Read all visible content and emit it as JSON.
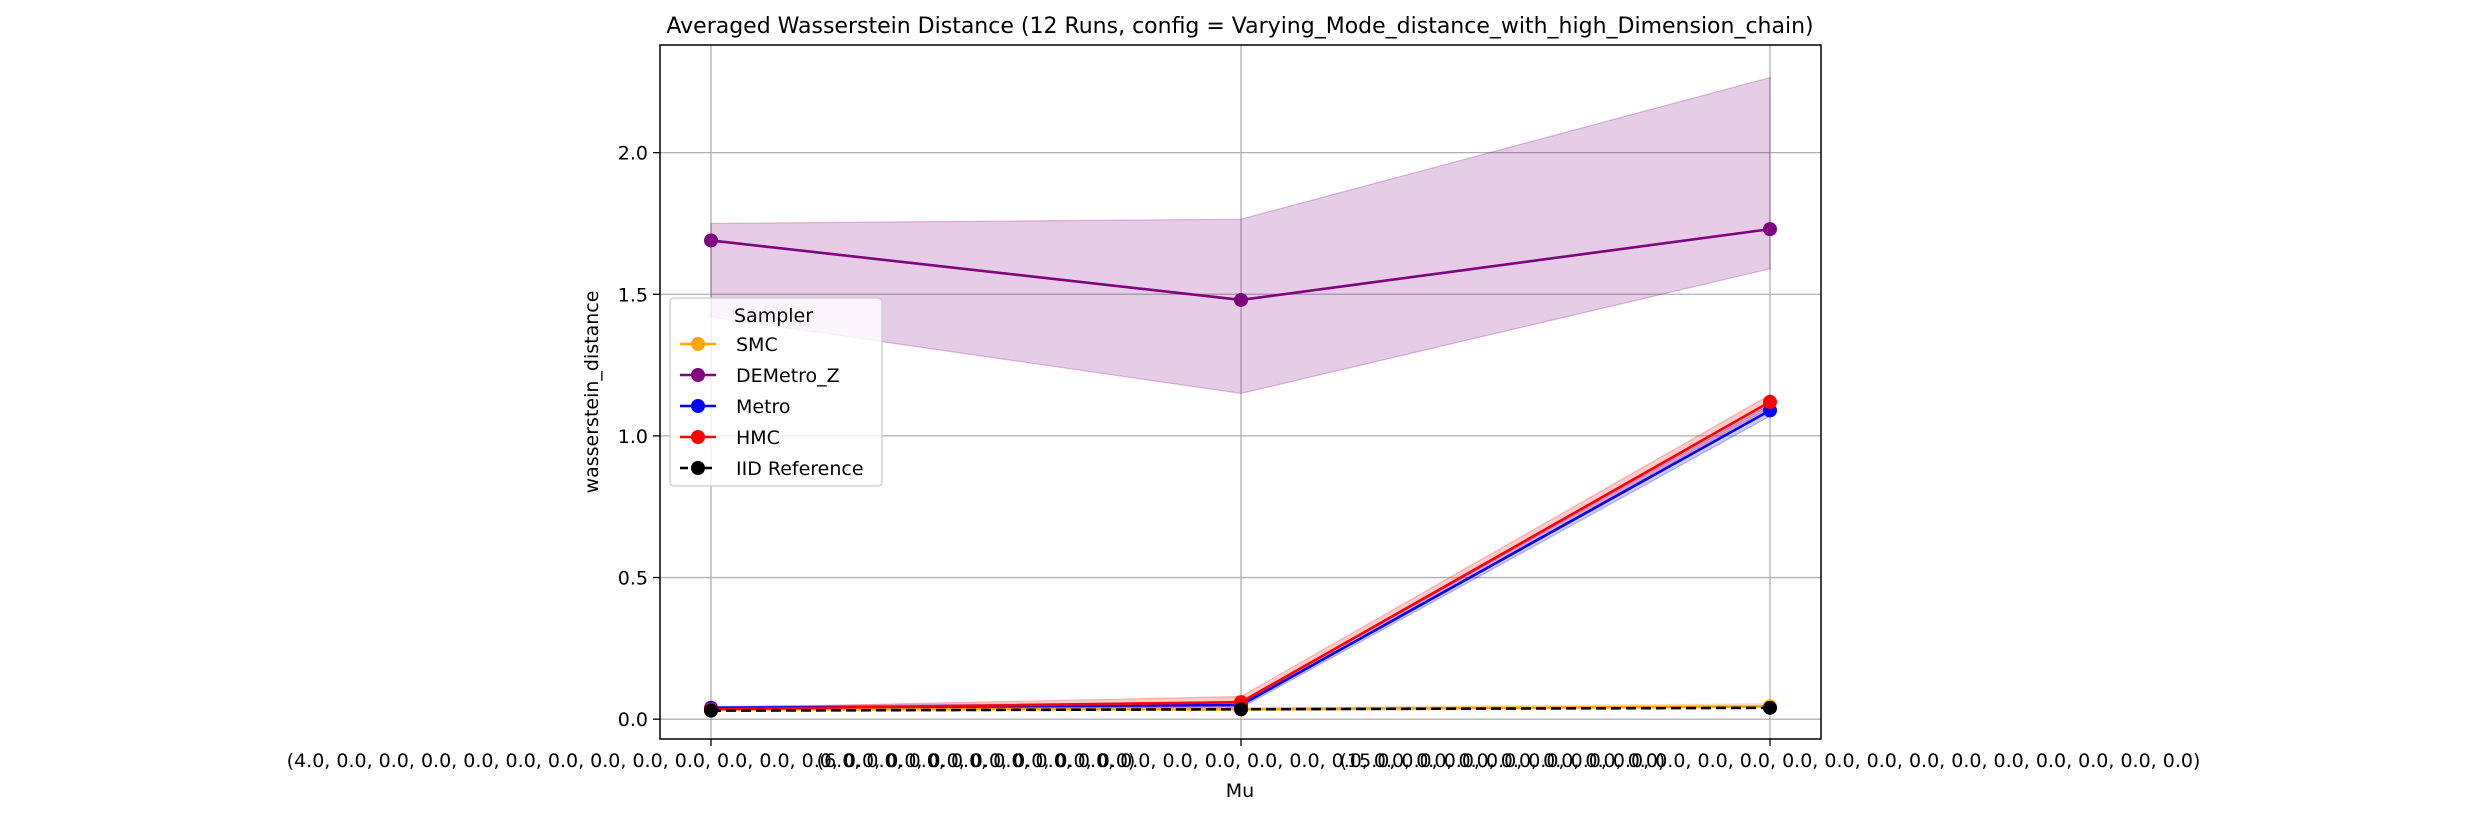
{
  "chart_data": {
    "type": "line",
    "title": "Averaged Wasserstein Distance (12 Runs, config = Varying_Mode_distance_with_high_Dimension_chain)",
    "xlabel": "Mu",
    "ylabel": "wasserstein_distance",
    "categories": [
      "(4.0, 0.0, 0.0, 0.0, 0.0, 0.0, 0.0, 0.0, 0.0, 0.0, 0.0, 0.0, 0.0, 0.0, 0.0, 0.0, 0.0, 0.0, 0.0, 0.0)",
      "(6.0, 0.0, 0.0, 0.0, 0.0, 0.0, 0.0, 0.0, 0.0, 0.0, 0.0, 0.0, 0.0, 0.0, 0.0, 0.0, 0.0, 0.0, 0.0, 0.0)",
      "(15.0, 0.0, 0.0, 0.0, 0.0, 0.0, 0.0, 0.0, 0.0, 0.0, 0.0, 0.0, 0.0, 0.0, 0.0, 0.0, 0.0, 0.0, 0.0, 0.0)"
    ],
    "ylim": [
      -0.07,
      2.38
    ],
    "yticks": [
      "0.0",
      "0.5",
      "1.0",
      "1.5",
      "2.0"
    ],
    "grid": true,
    "legend": {
      "title": "Sampler",
      "placement": "center-left"
    },
    "series": [
      {
        "name": "SMC",
        "color": "#ffa500",
        "dashed": false,
        "values": [
          0.035,
          0.035,
          0.045
        ],
        "band_low": [
          0.03,
          0.03,
          0.04
        ],
        "band_high": [
          0.04,
          0.04,
          0.055
        ]
      },
      {
        "name": "DEMetro_Z",
        "color": "#800080",
        "dashed": false,
        "values": [
          1.69,
          1.48,
          1.73
        ],
        "band_low": [
          1.42,
          1.15,
          1.59
        ],
        "band_high": [
          1.75,
          1.765,
          2.265
        ]
      },
      {
        "name": "Metro",
        "color": "#0000ff",
        "dashed": false,
        "values": [
          0.04,
          0.05,
          1.09
        ],
        "band_low": [
          0.035,
          0.04,
          1.07
        ],
        "band_high": [
          0.045,
          0.06,
          1.11
        ]
      },
      {
        "name": "HMC",
        "color": "#ff0000",
        "dashed": false,
        "values": [
          0.035,
          0.06,
          1.12
        ],
        "band_low": [
          0.03,
          0.045,
          1.1
        ],
        "band_high": [
          0.04,
          0.08,
          1.145
        ]
      },
      {
        "name": "IID Reference",
        "color": "#000000",
        "dashed": true,
        "values": [
          0.03,
          0.035,
          0.04
        ],
        "band_low": [
          0.03,
          0.035,
          0.04
        ],
        "band_high": [
          0.03,
          0.035,
          0.04
        ]
      }
    ]
  }
}
